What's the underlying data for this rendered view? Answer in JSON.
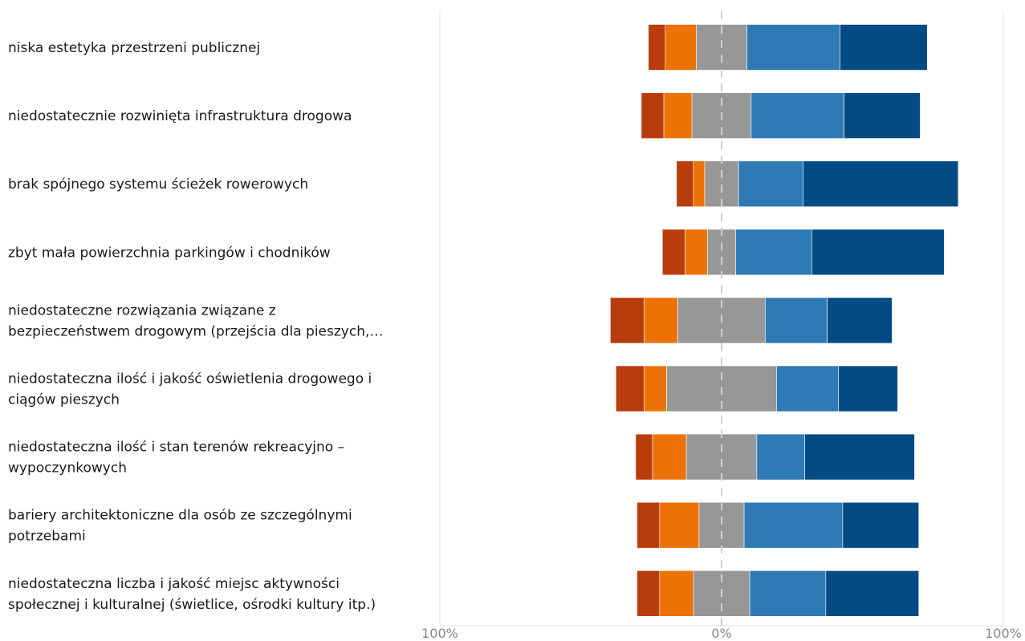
{
  "chart_data": {
    "type": "bar",
    "subtype": "diverging-stacked-bar",
    "orientation": "horizontal",
    "categories": [
      [
        "niska estetyka przestrzeni publicznej"
      ],
      [
        "niedostatecznie rozwinięta infrastruktura drogowa"
      ],
      [
        "brak spójnego systemu ścieżek rowerowych"
      ],
      [
        "zbyt mała powierzchnia parkingów i chodników"
      ],
      [
        "niedostateczne rozwiązania związane z",
        "bezpieczeństwem drogowym (przejścia dla pieszych,…"
      ],
      [
        "niedostateczna ilość i jakość oświetlenia drogowego i",
        "ciągów pieszych"
      ],
      [
        "niedostateczna ilość i stan terenów rekreacyjno –",
        "wypoczynkowych"
      ],
      [
        "bariery architektoniczne dla osób ze szczególnymi",
        "potrzebami"
      ],
      [
        "niedostateczna liczba i jakość miejsc aktywności",
        "społecznej i kulturalnej (świetlice, ośrodki kultury itp.)"
      ]
    ],
    "series": [
      {
        "color": "#b83c0c",
        "values": [
          6,
          8,
          6,
          8,
          12,
          10,
          6,
          8,
          8
        ]
      },
      {
        "color": "#ec7208",
        "values": [
          11,
          10,
          4,
          8,
          12,
          8,
          12,
          14,
          12
        ]
      },
      {
        "color": "#979797",
        "values": [
          18,
          21,
          12,
          10,
          31,
          39,
          25,
          16,
          20
        ]
      },
      {
        "color": "#2e7ab5",
        "values": [
          33,
          33,
          23,
          27,
          22,
          22,
          17,
          35,
          27
        ]
      },
      {
        "color": "#024b84",
        "values": [
          31,
          27,
          55,
          47,
          23,
          21,
          39,
          27,
          33
        ]
      }
    ],
    "neutral_series_index": 2,
    "xlim": [
      -100,
      100
    ],
    "x_tick_labels": [
      "100%",
      "0%",
      "100%"
    ],
    "grid": true,
    "legend": "none"
  }
}
